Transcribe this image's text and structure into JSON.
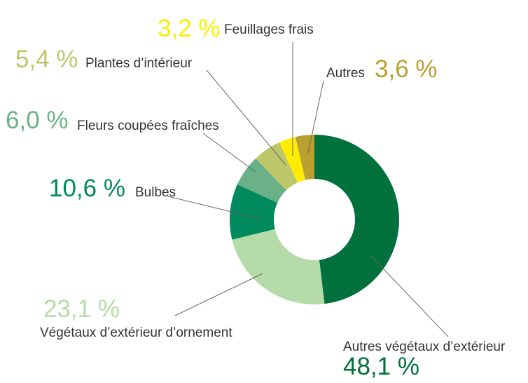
{
  "chart_data": {
    "type": "donut",
    "categories": [
      "Autres végétaux d’extérieur",
      "Végétaux d’extérieur d’ornement",
      "Bulbes",
      "Fleurs coupées fraîches",
      "Plantes d’intérieur",
      "Feuillages frais",
      "Autres"
    ],
    "values": [
      48.1,
      23.1,
      10.6,
      6.0,
      5.4,
      3.2,
      3.6
    ],
    "value_labels": [
      "48,1 %",
      "23,1 %",
      "10,6 %",
      "6,0 %",
      "5,4 %",
      "3,2 %",
      "3,6 %"
    ],
    "colors": [
      "#00703c",
      "#b5dba8",
      "#008a5e",
      "#6ab187",
      "#bcc76a",
      "#ffec00",
      "#b9a12f"
    ]
  }
}
